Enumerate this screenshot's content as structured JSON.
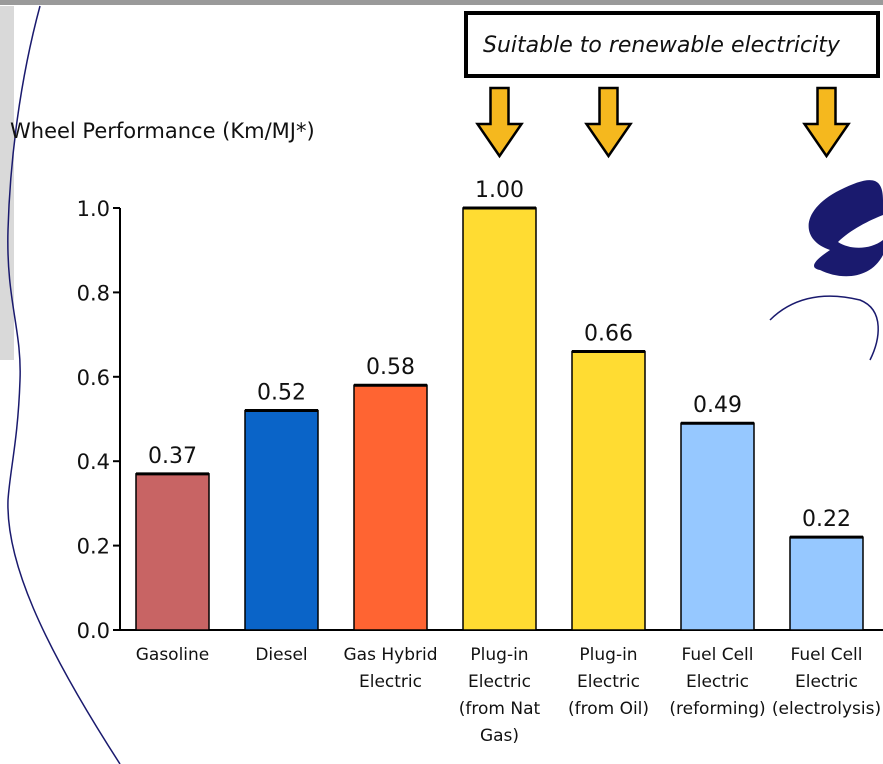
{
  "chart_data": {
    "type": "bar",
    "ylabel": "Wheel Performance (Km/MJ*)",
    "ylim": [
      0,
      1.0
    ],
    "yticks": [
      "0.0",
      "0.2",
      "0.4",
      "0.6",
      "0.8",
      "1.0"
    ],
    "categories": [
      [
        "Gasoline"
      ],
      [
        "Diesel"
      ],
      [
        "Gas Hybrid",
        "Electric"
      ],
      [
        "Plug-in",
        "Electric",
        "(from Nat",
        "Gas)"
      ],
      [
        "Plug-in",
        "Electric",
        "(from Oil)"
      ],
      [
        "Fuel Cell",
        "Electric",
        "(reforming)"
      ],
      [
        "Fuel Cell",
        "Electric",
        "(electrolysis)"
      ]
    ],
    "values": [
      0.37,
      0.52,
      0.58,
      1.0,
      0.66,
      0.49,
      0.22
    ],
    "value_labels": [
      "0.37",
      "0.52",
      "0.58",
      "1.00",
      "0.66",
      "0.49",
      "0.22"
    ],
    "bar_colors": [
      "#C86464",
      "#0A64C8",
      "#FF6432",
      "#FFDC32",
      "#FFDC32",
      "#96C8FF",
      "#96C8FF"
    ],
    "grid": false,
    "annotation": {
      "text": "Suitable to renewable electricity",
      "arrow_targets": [
        3,
        4,
        6
      ],
      "arrow_color": "#F5B81E"
    }
  }
}
